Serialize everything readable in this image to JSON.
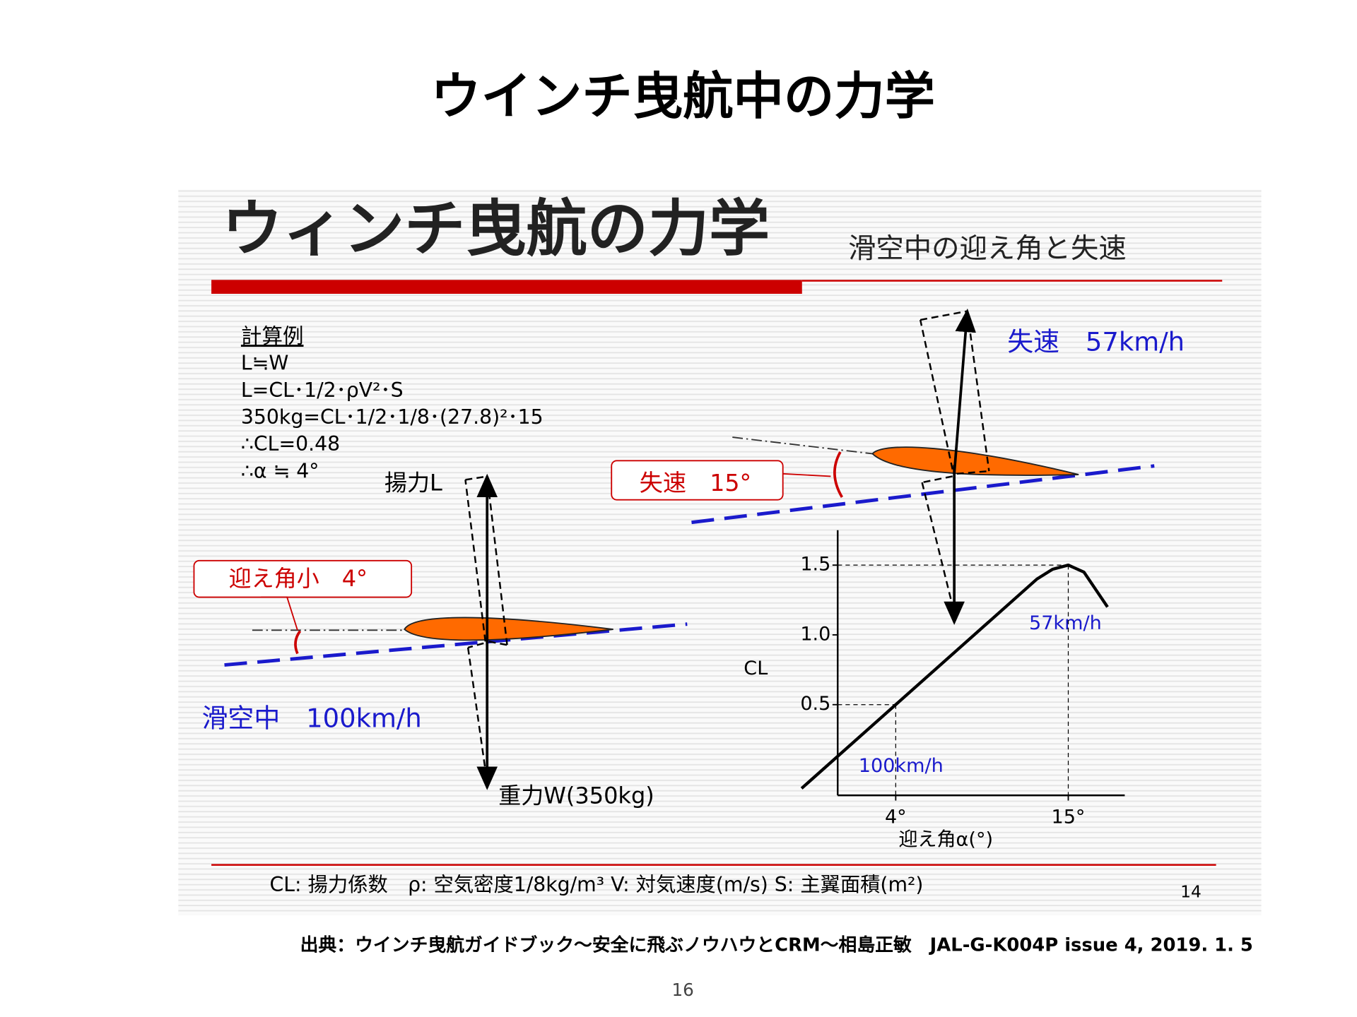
{
  "slide": {
    "title": "ウインチ曳航中の力学",
    "source": "出典：ウインチ曳航ガイドブック〜安全に飛ぶノウハウとCRM〜相島正敏　JAL-G-K004P issue 4, 2019. 1. 5",
    "page_number": "16"
  },
  "figure": {
    "title": "ウィンチ曳航の力学",
    "subtitle": "滑空中の迎え角と失速",
    "calc_heading": "計算例",
    "calc_lines": [
      "L≒W",
      "L=CL･1/2･ρV²･S",
      "350kg=CL･1/2･1/8･(27.8)²･15",
      "∴CL=0.48",
      "∴α ≒ 4°"
    ],
    "lift_label": "揚力L",
    "weight_label": "重力W(350kg)",
    "small_aoa_label": "迎え角小　4°",
    "glide_label": "滑空中　100km/h",
    "stall_angle_label": "失速　15°",
    "stall_speed_label": "失速　57km/h",
    "legend_line": "CL:  揚力係数　ρ:  空気密度1/8kg/m³  V:  対気速度(m/s)  S:  主翼面積(m²)",
    "figure_page": "14",
    "cl_chart": {
      "y_label": "CL",
      "x_label": "迎え角α(°)",
      "xlim": [
        0.3,
        18.6
      ],
      "ylim": [
        -0.15,
        1.75
      ],
      "xticks": [
        {
          "value": 4,
          "label": "4°"
        },
        {
          "value": 15,
          "label": "15°"
        }
      ],
      "yticks": [
        1.5,
        {
          "value": 1,
          "label": "1.0"
        },
        0.5
      ],
      "x": [
        -2,
        4,
        13,
        14,
        15,
        16,
        17.5
      ],
      "y": [
        -0.1,
        0.5,
        1.4,
        1.47,
        1.5,
        1.45,
        1.2
      ],
      "annotations": [
        {
          "text": "57km/h",
          "x": 15,
          "y": 1.5
        },
        {
          "text": "100km/h",
          "x": 4,
          "y": 0.5
        }
      ]
    }
  }
}
